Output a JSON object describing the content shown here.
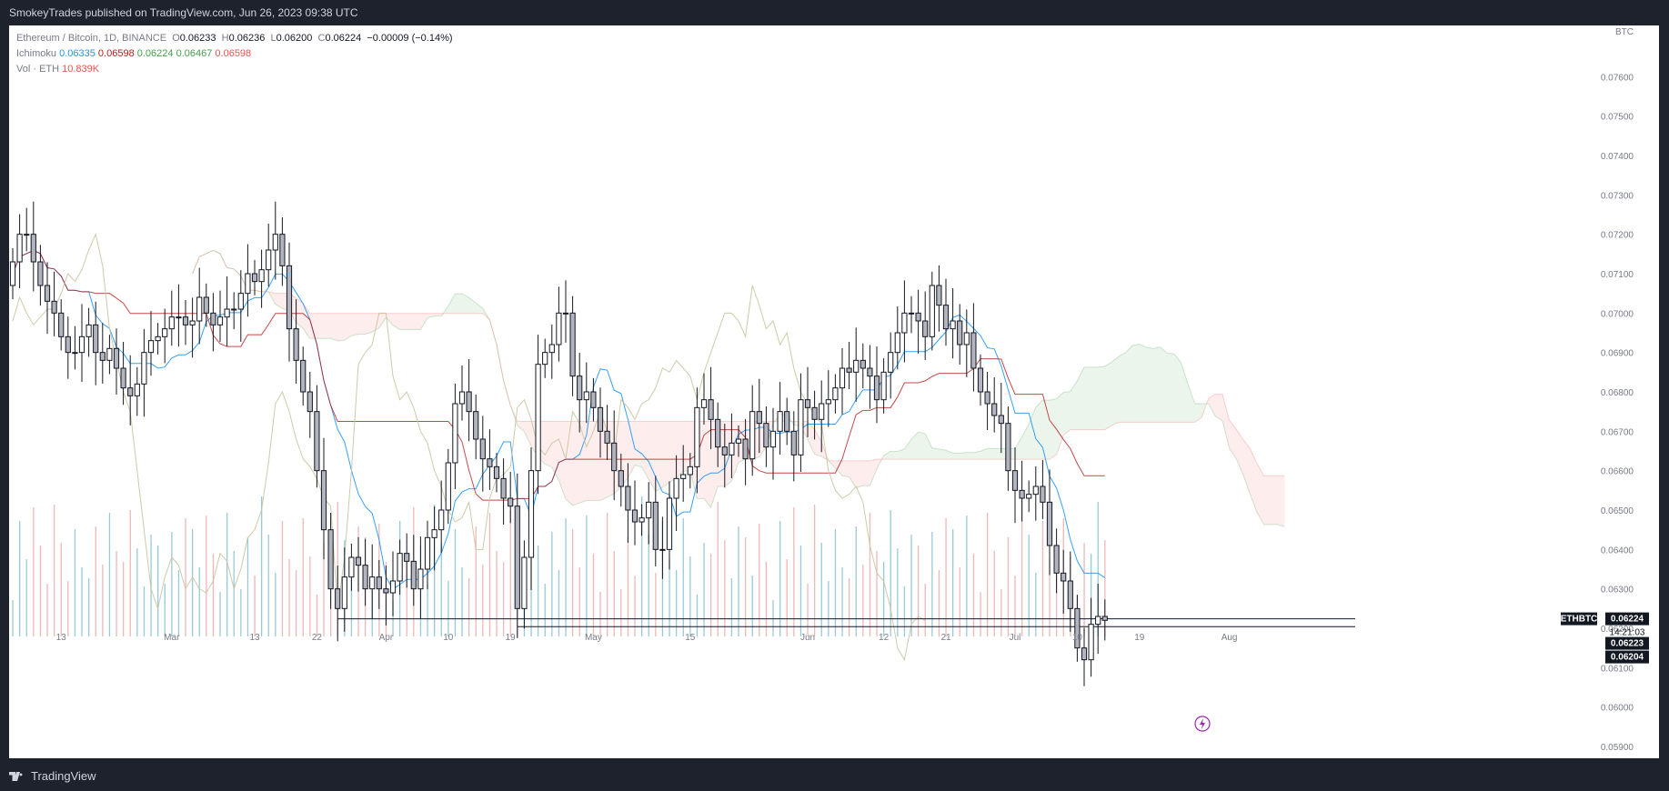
{
  "publisher_line": "SmokeyTrades published on TradingView.com, Jun 26, 2023 09:38 UTC",
  "brand": "TradingView",
  "legend": {
    "symbol": "Ethereum / Bitcoin, 1D, BINANCE",
    "ohlc": {
      "o_label": "O",
      "o": "0.06233",
      "h_label": "H",
      "h": "0.06236",
      "l_label": "L",
      "l": "0.06200",
      "c_label": "C",
      "c": "0.06224",
      "change": "−0.00009 (−0.14%)"
    },
    "ichimoku_label": "Ichimoku",
    "ichimoku_values": [
      "0.06335",
      "0.06598",
      "0.06224",
      "0.06467",
      "0.06598"
    ],
    "vol_label": "Vol · ETH",
    "vol_value": "10.839K"
  },
  "currency": "BTC",
  "price_labels": {
    "ticker": "ETHBTC",
    "last": "0.06224",
    "countdown": "14:21:03",
    "level1": "0.06223",
    "level2": "0.06204"
  },
  "colors": {
    "up": "#ffffff",
    "down": "#b2b5be",
    "outline": "#131722",
    "tenkan": "#2196f3",
    "kijun": "#b71c1c",
    "lagging": "#c8c4a0",
    "cloud_bull": "#43a047",
    "cloud_bear": "#ef5350",
    "vol_up": "#7fbcd0",
    "vol_down": "#e8a6a6"
  },
  "chart_data": {
    "type": "candlestick",
    "symbol": "ETHBTC",
    "timeframe": "1D",
    "ylim": [
      0.0587,
      0.0773
    ],
    "y_ticks": [
      "0.07600",
      "0.07500",
      "0.07400",
      "0.07300",
      "0.07200",
      "0.07100",
      "0.07000",
      "0.06900",
      "0.06800",
      "0.06700",
      "0.06600",
      "0.06500",
      "0.06400",
      "0.06300",
      "0.06200",
      "0.06100",
      "0.06000",
      "0.05900"
    ],
    "x_ticks": [
      {
        "label": "13",
        "date": "2023-02-13"
      },
      {
        "label": "Mar",
        "date": "2023-03-01"
      },
      {
        "label": "13",
        "date": "2023-03-13"
      },
      {
        "label": "22",
        "date": "2023-03-22"
      },
      {
        "label": "Apr",
        "date": "2023-04-01"
      },
      {
        "label": "10",
        "date": "2023-04-10"
      },
      {
        "label": "19",
        "date": "2023-04-19"
      },
      {
        "label": "May",
        "date": "2023-05-01"
      },
      {
        "label": "15",
        "date": "2023-05-15"
      },
      {
        "label": "Jun",
        "date": "2023-06-01"
      },
      {
        "label": "12",
        "date": "2023-06-12"
      },
      {
        "label": "21",
        "date": "2023-06-21"
      },
      {
        "label": "Jul",
        "date": "2023-07-01"
      },
      {
        "label": "10",
        "date": "2023-07-10"
      },
      {
        "label": "19",
        "date": "2023-07-19"
      },
      {
        "label": "Aug",
        "date": "2023-08-01"
      }
    ],
    "close": [
      0.0713,
      0.072,
      0.072,
      0.0713,
      0.0707,
      0.0703,
      0.07,
      0.0694,
      0.069,
      0.069,
      0.0694,
      0.0697,
      0.069,
      0.0688,
      0.0691,
      0.0686,
      0.0681,
      0.0679,
      0.0682,
      0.069,
      0.0693,
      0.0694,
      0.0696,
      0.0699,
      0.0699,
      0.0697,
      0.0698,
      0.0704,
      0.07,
      0.0697,
      0.0699,
      0.0701,
      0.0701,
      0.0705,
      0.071,
      0.0708,
      0.0711,
      0.0716,
      0.072,
      0.0712,
      0.0696,
      0.0688,
      0.068,
      0.0675,
      0.066,
      0.0645,
      0.063,
      0.0625,
      0.0633,
      0.0638,
      0.0636,
      0.063,
      0.0633,
      0.063,
      0.0629,
      0.0632,
      0.0639,
      0.0637,
      0.063,
      0.0635,
      0.0643,
      0.0645,
      0.065,
      0.0662,
      0.0677,
      0.068,
      0.0675,
      0.0668,
      0.0663,
      0.0661,
      0.0658,
      0.0653,
      0.0651,
      0.0625,
      0.0638,
      0.066,
      0.0687,
      0.069,
      0.0692,
      0.07,
      0.07,
      0.0684,
      0.0678,
      0.068,
      0.0676,
      0.067,
      0.0667,
      0.066,
      0.0656,
      0.065,
      0.0647,
      0.0648,
      0.0652,
      0.064,
      0.064,
      0.0653,
      0.0658,
      0.0659,
      0.0661,
      0.0676,
      0.0678,
      0.0673,
      0.0666,
      0.0664,
      0.0667,
      0.0668,
      0.0663,
      0.0675,
      0.0672,
      0.0666,
      0.067,
      0.0675,
      0.067,
      0.0664,
      0.0678,
      0.0676,
      0.0673,
      0.0677,
      0.0678,
      0.0681,
      0.0686,
      0.0685,
      0.0688,
      0.0686,
      0.0684,
      0.0678,
      0.0685,
      0.069,
      0.0695,
      0.07,
      0.07,
      0.0698,
      0.0694,
      0.0707,
      0.0702,
      0.0696,
      0.0698,
      0.0692,
      0.0695,
      0.0686,
      0.068,
      0.0677,
      0.0674,
      0.0672,
      0.066,
      0.0655,
      0.0653,
      0.0654,
      0.0656,
      0.0652,
      0.0641,
      0.0634,
      0.0632,
      0.0625,
      0.0615,
      0.0612,
      0.0621,
      0.0623,
      0.0622
    ],
    "ichimoku_end": {
      "conversion": 0.06335,
      "base": 0.06598,
      "lagging": 0.06224,
      "lead1": 0.06467,
      "lead2": 0.06598
    },
    "volume_unit": "ETH",
    "last_volume": "10.839K",
    "horizontal_lines": [
      0.06224,
      0.06204
    ]
  }
}
